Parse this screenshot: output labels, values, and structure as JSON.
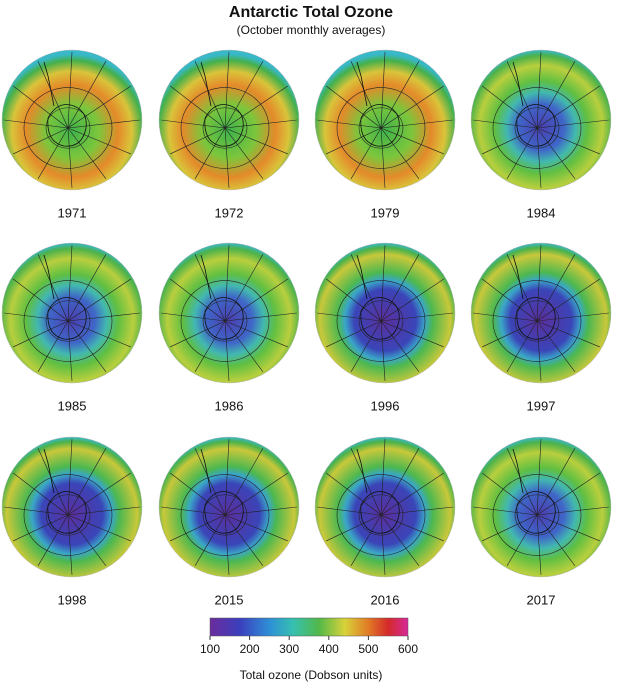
{
  "chart_data": {
    "type": "map-panels",
    "title": "Antarctic Total Ozone",
    "subtitle": "(October monthly averages)",
    "panels": [
      "1971",
      "1972",
      "1979",
      "1984",
      "1985",
      "1986",
      "1996",
      "1997",
      "1998",
      "2015",
      "2016",
      "2017"
    ],
    "colorbar": {
      "label": "Total ozone (Dobson units)",
      "lim": [
        100,
        600
      ],
      "ticks": [
        100,
        200,
        300,
        400,
        500,
        600
      ]
    }
  }
}
